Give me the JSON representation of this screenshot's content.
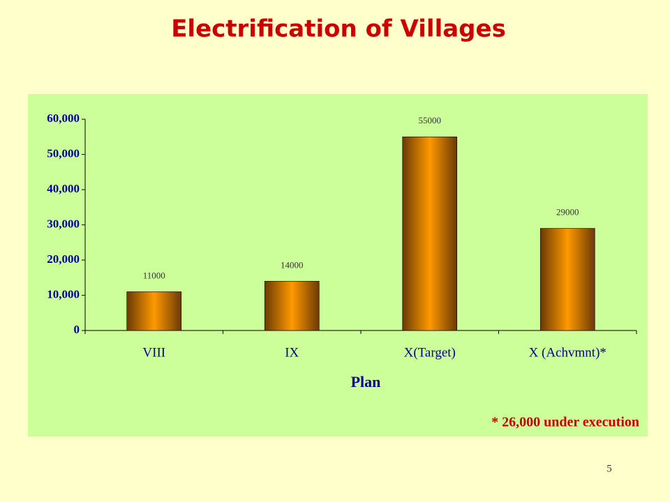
{
  "chart_data": {
    "type": "bar",
    "title": "Electrification of Villages",
    "x_label": "Plan",
    "categories": [
      "VIII",
      "IX",
      "X(Target)",
      "X (Achvmnt)*"
    ],
    "values": [
      11000,
      14000,
      55000,
      29000
    ],
    "color": "#ff9900",
    "ylim": [
      0,
      60000
    ],
    "yticks": [
      0,
      {
        "value": 10000,
        "label": "10,000"
      },
      {
        "value": 20000,
        "label": "20,000"
      },
      {
        "value": 30000,
        "label": "30,000"
      },
      {
        "value": 40000,
        "label": "40,000"
      },
      {
        "value": 50000,
        "label": "50,000"
      },
      {
        "value": 60000,
        "label": "60,000"
      }
    ],
    "grid": false,
    "footnote": "* 26,000 under execution",
    "page_number": "5"
  }
}
